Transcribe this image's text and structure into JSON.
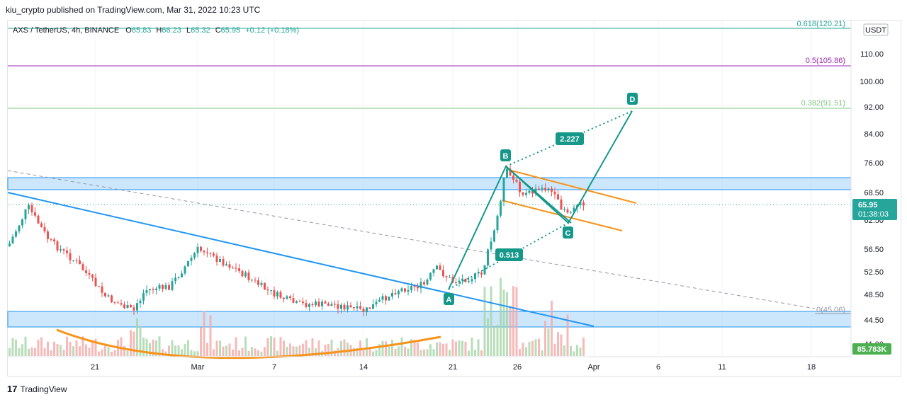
{
  "header": {
    "published_by": "kiu_crypto published on TradingView.com, Mar 31, 2022 10:23 UTC",
    "symbol_line": "AXS / TetherUS, 4h, BINANCE",
    "ohlc": {
      "open_label": "O",
      "open": "65.83",
      "high_label": "H",
      "high": "66.23",
      "low_label": "L",
      "low": "65.32",
      "close_label": "C",
      "close": "65.95",
      "change": "+0.12 (+0.18%)"
    }
  },
  "footer": {
    "brand": "TradingView",
    "logo_mark": "17"
  },
  "colors": {
    "up": "#26a69a",
    "down": "#ef5350",
    "blue_line": "#2196f3",
    "orange": "#f7931a",
    "teal": "#15988a",
    "fib_618": "#26a69a",
    "fib_05": "#9c27b0",
    "fib_382": "#81c784",
    "zone_fill": "#bbdefb",
    "zone_stroke": "#2196f3"
  },
  "chart_data": {
    "type": "candlestick",
    "scale": "log",
    "currency": "USDT",
    "y_ticks": [
      "110.00",
      "100.00",
      "92.00",
      "84.00",
      "76.00",
      "68.50",
      "62.50",
      "56.50",
      "52.50",
      "48.50",
      "44.50",
      "41.00"
    ],
    "x_ticks": [
      "21",
      "Mar",
      "7",
      "14",
      "21",
      "26",
      "Apr",
      "6",
      "11",
      "18"
    ],
    "last_price": {
      "value": "65.95",
      "countdown": "01:38:03"
    },
    "volume_label": "85.783K",
    "fib_levels": [
      {
        "label": "0.618(120.21)",
        "value": 120.21
      },
      {
        "label": "0.5(105.86)",
        "value": 105.86
      },
      {
        "label": "0.382(91.51)",
        "value": 91.51
      },
      {
        "label": "0(45.06)",
        "value": 45.06
      }
    ],
    "zones": [
      {
        "name": "resistance",
        "from": 67.5,
        "to": 72.5
      },
      {
        "name": "support",
        "from": 42.8,
        "to": 45.6
      }
    ],
    "wave_points": [
      {
        "label": "A",
        "date": "Mar 20",
        "price": 49.5
      },
      {
        "label": "B",
        "date": "Mar 25",
        "price": 74.5
      },
      {
        "label": "C",
        "date": "Mar 29",
        "price": 61.5
      },
      {
        "label": "D",
        "date": "Apr 3",
        "price": 91.0
      }
    ],
    "ratios": [
      {
        "label": "0.513",
        "date": "Mar 25",
        "price": 55.2
      },
      {
        "label": "2.227",
        "date": "Mar 29",
        "price": 81.0
      }
    ]
  }
}
